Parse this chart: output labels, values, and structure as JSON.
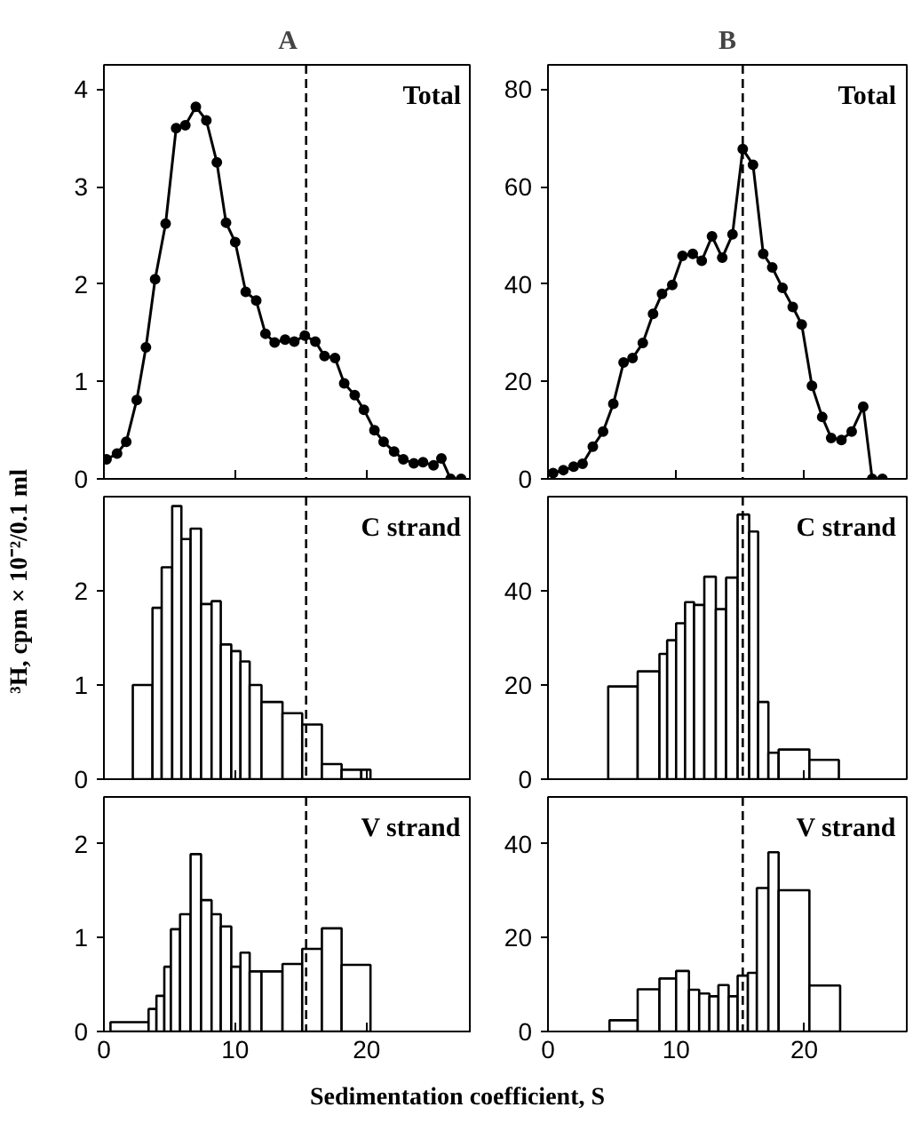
{
  "chart_data": [
    {
      "type": "line",
      "title": "Total",
      "annotations": [
        "A"
      ],
      "color": "#000000",
      "marker": "circle",
      "line_style": "solid",
      "grid": false,
      "tick_labels": "y",
      "xlim": [
        0,
        28
      ],
      "ylim": [
        0,
        4.25
      ],
      "xticks": [
        0,
        10,
        20
      ],
      "yticks": [
        0,
        1,
        2,
        3,
        4
      ],
      "ref_lines": [
        {
          "axis": "x",
          "value": 15.4,
          "line_style": "dashed"
        }
      ],
      "x": [
        0.2,
        1.0,
        1.7,
        2.5,
        3.2,
        3.9,
        4.7,
        5.5,
        6.2,
        7.0,
        7.8,
        8.6,
        9.3,
        10.0,
        10.8,
        11.6,
        12.3,
        13.0,
        13.8,
        14.5,
        15.3,
        16.1,
        16.8,
        17.6,
        18.3,
        19.1,
        19.8,
        20.6,
        21.3,
        22.1,
        22.8,
        23.6,
        24.3,
        25.1,
        25.7,
        26.4,
        27.2
      ],
      "values": [
        0.2,
        0.26,
        0.38,
        0.81,
        1.35,
        2.05,
        2.62,
        3.6,
        3.63,
        3.82,
        3.68,
        3.25,
        2.63,
        2.43,
        1.92,
        1.83,
        1.49,
        1.4,
        1.43,
        1.41,
        1.47,
        1.41,
        1.26,
        1.24,
        0.98,
        0.86,
        0.71,
        0.5,
        0.38,
        0.28,
        0.2,
        0.16,
        0.17,
        0.14,
        0.21,
        0,
        0
      ]
    },
    {
      "type": "line",
      "title": "Total",
      "annotations": [
        "B"
      ],
      "color": "#000000",
      "marker": "circle",
      "line_style": "solid",
      "grid": false,
      "tick_labels": "y",
      "xlim": [
        0,
        28
      ],
      "ylim": [
        0,
        85
      ],
      "xticks": [
        0,
        10,
        20
      ],
      "yticks": [
        0,
        20,
        40,
        60,
        80
      ],
      "ref_lines": [
        {
          "axis": "x",
          "value": 15.2,
          "line_style": "dashed"
        }
      ],
      "x": [
        0.4,
        1.2,
        2.0,
        2.7,
        3.5,
        4.3,
        5.1,
        5.9,
        6.6,
        7.4,
        8.2,
        8.9,
        9.7,
        10.5,
        11.3,
        12.0,
        12.8,
        13.6,
        14.4,
        15.2,
        16.0,
        16.8,
        17.5,
        18.3,
        19.1,
        19.8,
        20.6,
        21.4,
        22.1,
        22.9,
        23.7,
        24.6,
        25.3,
        26.1
      ],
      "values": [
        1.2,
        1.8,
        2.5,
        3.1,
        6.6,
        9.7,
        15.4,
        23.9,
        24.8,
        27.9,
        33.9,
        38.0,
        39.8,
        45.8,
        46.2,
        44.8,
        49.8,
        45.4,
        50.2,
        67.7,
        64.5,
        46.2,
        43.4,
        39.2,
        35.3,
        31.7,
        19.1,
        12.7,
        8.4,
        8.0,
        9.7,
        14.8,
        0,
        0
      ]
    },
    {
      "type": "histogram",
      "title": "C strand",
      "ylabel": "³H, cpm × 10⁻²/0.1 ml",
      "color": "#ffffff",
      "grid": false,
      "tick_labels": "y",
      "xlim": [
        0,
        28
      ],
      "ylim": [
        0,
        3
      ],
      "xticks": [
        0,
        10,
        20
      ],
      "yticks": [
        0,
        1,
        2
      ],
      "ref_lines": [
        {
          "axis": "x",
          "value": 15.4,
          "line_style": "dashed"
        }
      ],
      "bins": [
        2.2,
        3.7,
        4.4,
        5.2,
        5.9,
        6.6,
        7.4,
        8.2,
        8.9,
        9.7,
        10.4,
        11.1,
        12.0,
        13.6,
        15.1,
        16.6,
        18.1,
        19.6,
        20.3
      ],
      "values": [
        1.0,
        1.82,
        2.25,
        2.9,
        2.55,
        2.66,
        1.86,
        1.89,
        1.43,
        1.36,
        1.25,
        1.0,
        0.82,
        0.7,
        0.58,
        0.16,
        0.1,
        0.1
      ]
    },
    {
      "type": "histogram",
      "title": "C strand",
      "color": "#ffffff",
      "grid": false,
      "tick_labels": "y",
      "xlim": [
        0,
        28
      ],
      "ylim": [
        0,
        60
      ],
      "xticks": [
        0,
        10,
        20
      ],
      "yticks": [
        0,
        20,
        40
      ],
      "ref_lines": [
        {
          "axis": "x",
          "value": 15.2,
          "line_style": "dashed"
        }
      ],
      "bins": [
        4.7,
        7.0,
        8.7,
        9.3,
        10.0,
        10.7,
        11.4,
        12.2,
        13.1,
        13.9,
        14.8,
        15.7,
        16.4,
        17.2,
        18.0,
        20.4,
        22.7
      ],
      "values": [
        19.7,
        22.9,
        26.6,
        29.5,
        33.1,
        37.6,
        37.0,
        43.0,
        36.1,
        42.8,
        56.2,
        52.6,
        16.4,
        5.6,
        6.3,
        4.1
      ]
    },
    {
      "type": "histogram",
      "title": "V strand",
      "xlabel": "Sedimentation coefficient, S",
      "color": "#ffffff",
      "grid": false,
      "xlim": [
        0,
        28
      ],
      "ylim": [
        0,
        2.5
      ],
      "xticks": [
        0,
        10,
        20
      ],
      "yticks": [
        0,
        1,
        2
      ],
      "ref_lines": [
        {
          "axis": "x",
          "value": 15.4,
          "line_style": "dashed"
        }
      ],
      "bins": [
        0.5,
        3.4,
        4.0,
        4.6,
        5.1,
        5.8,
        6.6,
        7.4,
        8.2,
        8.9,
        9.7,
        10.4,
        11.1,
        12.0,
        13.6,
        15.1,
        16.6,
        18.1,
        20.3
      ],
      "values": [
        0.1,
        0.24,
        0.38,
        0.69,
        1.09,
        1.25,
        1.89,
        1.4,
        1.25,
        1.12,
        0.69,
        0.84,
        0.64,
        0.64,
        0.72,
        0.88,
        1.1,
        0.71
      ]
    },
    {
      "type": "histogram",
      "title": "V strand",
      "color": "#ffffff",
      "grid": false,
      "xlim": [
        0,
        28
      ],
      "ylim": [
        0,
        50
      ],
      "xticks": [
        0,
        10,
        20
      ],
      "yticks": [
        0,
        20,
        40
      ],
      "ref_lines": [
        {
          "axis": "x",
          "value": 15.2,
          "line_style": "dashed"
        }
      ],
      "bins": [
        4.8,
        7.0,
        8.7,
        10.0,
        11.0,
        11.8,
        12.6,
        13.3,
        14.1,
        14.8,
        15.6,
        16.3,
        17.2,
        18.0,
        20.4,
        22.8
      ],
      "values": [
        2.4,
        9.0,
        11.3,
        12.9,
        8.9,
        8.1,
        7.5,
        9.9,
        7.5,
        11.9,
        12.5,
        30.6,
        38.2,
        30.1,
        9.8
      ]
    }
  ]
}
